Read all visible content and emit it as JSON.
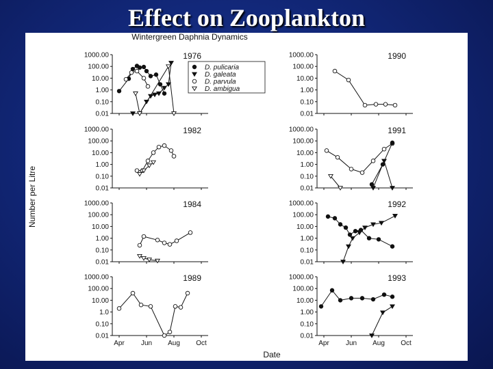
{
  "slide": {
    "title": "Effect on Zooplankton"
  },
  "figure": {
    "title": "Wintergreen Daphnia Dynamics",
    "xlabel": "Date",
    "ylabel": "Number per Litre"
  },
  "legend": {
    "placement": "top-right of 1976 panel",
    "entries": [
      {
        "key": "pulicaria",
        "label": "D. pulicaria",
        "marker": "filled-circle"
      },
      {
        "key": "galeata",
        "label": "D. galeata",
        "marker": "filled-triangle-down"
      },
      {
        "key": "parvula",
        "label": "D. parvula",
        "marker": "open-circle"
      },
      {
        "key": "ambigua",
        "label": "D. ambigua",
        "marker": "open-triangle-down"
      }
    ]
  },
  "chart_data": {
    "type": "line",
    "scale": "log",
    "y_ticks": [
      "1000.00",
      "100.00",
      "10.00",
      "1.00",
      "0.10",
      "0.01"
    ],
    "y_ticks_1989": [
      "1000.00",
      "100.00",
      "10.00",
      "1.0",
      "0.10",
      "0.01"
    ],
    "x_ticks": [
      "Apr",
      "Jun",
      "Aug",
      "Oct"
    ],
    "x_range_months": [
      3.5,
      10.5
    ],
    "panels": [
      {
        "year": "1976",
        "series": [
          {
            "key": "pulicaria",
            "x": [
              4.0,
              4.7,
              5.0,
              5.3,
              5.5,
              5.8,
              6.0,
              6.3,
              6.7,
              7.0,
              7.3
            ],
            "y": [
              0.8,
              9,
              60,
              110,
              80,
              90,
              40,
              15,
              20,
              3,
              0.5
            ]
          },
          {
            "key": "galeata",
            "x": [
              5.0,
              5.5,
              6.0,
              6.3,
              6.6,
              6.9,
              7.3,
              7.6,
              7.8
            ],
            "y": [
              0.01,
              0.01,
              0.1,
              0.3,
              0.4,
              0.5,
              1.5,
              3,
              200
            ]
          },
          {
            "key": "parvula",
            "x": [
              4.5,
              4.9,
              5.3,
              5.8,
              6.1
            ],
            "y": [
              8,
              30,
              40,
              10,
              2
            ]
          },
          {
            "key": "ambigua",
            "x": [
              5.2,
              5.5,
              7.6,
              8.0
            ],
            "y": [
              0.5,
              0.01,
              100,
              0.01
            ]
          }
        ]
      },
      {
        "year": "1982",
        "series": [
          {
            "key": "parvula",
            "x": [
              5.3,
              5.7,
              6.1,
              6.5,
              6.9,
              7.3,
              7.8,
              8.0
            ],
            "y": [
              0.3,
              0.3,
              2,
              10,
              30,
              40,
              15,
              5
            ]
          },
          {
            "key": "ambigua",
            "x": [
              5.5,
              5.8,
              6.2,
              6.5
            ],
            "y": [
              0.15,
              0.3,
              0.8,
              1.5
            ]
          }
        ]
      },
      {
        "year": "1984",
        "series": [
          {
            "key": "parvula",
            "x": [
              5.5,
              5.8,
              6.8,
              7.3,
              7.7,
              8.2,
              9.2
            ],
            "y": [
              0.25,
              1.4,
              0.7,
              0.4,
              0.3,
              0.6,
              3
            ]
          },
          {
            "key": "ambigua",
            "x": [
              5.5,
              5.8,
              6.2,
              6.8
            ],
            "y": [
              0.03,
              0.02,
              0.015,
              0.012
            ]
          }
        ]
      },
      {
        "year": "1989",
        "series": [
          {
            "key": "parvula",
            "x": [
              4.0,
              5.0,
              5.6,
              6.3,
              7.3,
              7.7,
              8.1,
              8.5,
              9.0
            ],
            "y": [
              2,
              40,
              4,
              3,
              0.01,
              0.02,
              3,
              2.5,
              40
            ]
          }
        ]
      },
      {
        "year": "1990",
        "series": [
          {
            "key": "parvula",
            "x": [
              4.8,
              5.8,
              7.0,
              7.8,
              8.5,
              9.2
            ],
            "y": [
              40,
              7,
              0.05,
              0.06,
              0.06,
              0.05
            ]
          }
        ]
      },
      {
        "year": "1991",
        "series": [
          {
            "key": "parvula",
            "x": [
              4.2,
              5.0,
              6.0,
              6.8,
              7.6,
              8.4,
              9.0
            ],
            "y": [
              15,
              4,
              0.4,
              0.2,
              2,
              20,
              60
            ]
          },
          {
            "key": "pulicaria",
            "x": [
              7.5,
              8.3,
              9.0
            ],
            "y": [
              0.02,
              1,
              70
            ]
          },
          {
            "key": "galeata",
            "x": [
              7.6,
              8.4,
              9.0
            ],
            "y": [
              0.01,
              2,
              0.01
            ]
          },
          {
            "key": "ambigua",
            "x": [
              4.5,
              5.2
            ],
            "y": [
              0.1,
              0.01
            ]
          }
        ]
      },
      {
        "year": "1992",
        "series": [
          {
            "key": "pulicaria",
            "x": [
              4.3,
              4.8,
              5.2,
              5.6,
              5.9,
              6.3,
              6.7,
              7.3,
              8.0,
              9.0
            ],
            "y": [
              70,
              50,
              15,
              8,
              2,
              4,
              5,
              1,
              0.8,
              0.2
            ]
          },
          {
            "key": "galeata",
            "x": [
              5.4,
              5.8,
              6.1,
              6.6,
              7.0,
              7.6,
              8.2,
              9.2
            ],
            "y": [
              0.01,
              0.2,
              1,
              3,
              8,
              15,
              20,
              80
            ]
          }
        ]
      },
      {
        "year": "1993",
        "series": [
          {
            "key": "pulicaria",
            "x": [
              3.8,
              4.6,
              5.2,
              6.0,
              6.8,
              7.6,
              8.4,
              9.0
            ],
            "y": [
              3,
              70,
              10,
              15,
              15,
              12,
              30,
              20
            ]
          },
          {
            "key": "galeata",
            "x": [
              7.5,
              8.3,
              9.0
            ],
            "y": [
              0.01,
              0.9,
              3
            ]
          }
        ]
      }
    ]
  }
}
